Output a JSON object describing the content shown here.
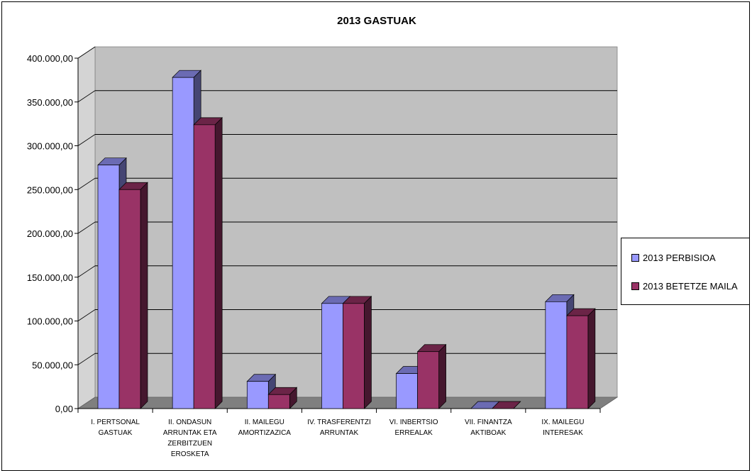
{
  "chart_data": {
    "type": "bar",
    "title": "2013 GASTUAK",
    "xlabel": "",
    "ylabel": "",
    "ylim": [
      0,
      400000
    ],
    "yticks": [
      "0,00",
      "50.000,00",
      "100.000,00",
      "150.000,00",
      "200.000,00",
      "250.000,00",
      "300.000,00",
      "350.000,00",
      "400.000,00"
    ],
    "categories": [
      [
        "I. PERTSONAL",
        "GASTUAK"
      ],
      [
        "II. ONDASUN",
        "ARRUNTAK ETA",
        "ZERBITZUEN",
        "EROSKETA"
      ],
      [
        "II. MAILEGU",
        "AMORTIZAZICA"
      ],
      [
        "IV. TRASFERENTZI",
        "ARRUNTAK"
      ],
      [
        "VI. INBERTSIO",
        "ERREALAK"
      ],
      [
        "VII. FINANTZA",
        "AKTIBOAK"
      ],
      [
        "IX. MAILEGU",
        "INTERESAK"
      ]
    ],
    "series": [
      {
        "name": "2013 PERBISIOA",
        "color": "#9999ff",
        "values": [
          278000,
          378000,
          31000,
          120000,
          40000,
          0,
          122000
        ]
      },
      {
        "name": "2013 BETETZE MAILA",
        "color": "#993366",
        "values": [
          250000,
          324000,
          16000,
          120000,
          65000,
          0,
          106000
        ]
      }
    ],
    "grid": true,
    "legend_position": "right",
    "plot_background": "#c0c0c0"
  }
}
